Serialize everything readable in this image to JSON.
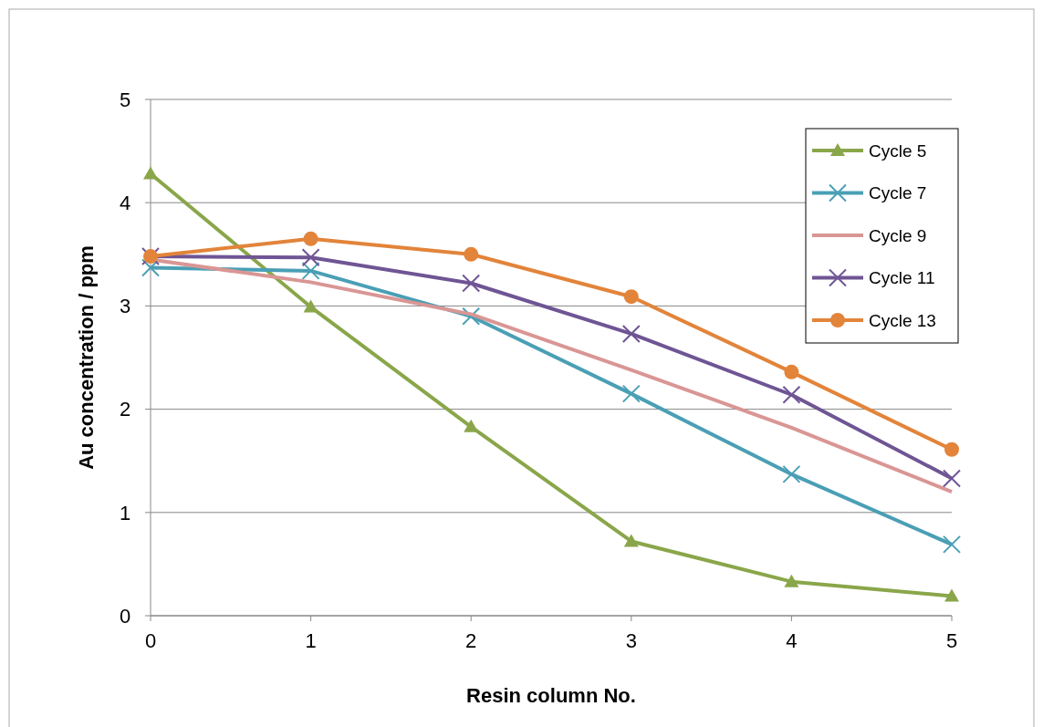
{
  "chart_data": {
    "type": "line",
    "xlabel": "Resin column No.",
    "ylabel": "Au concentration / ppm",
    "x": [
      0,
      1,
      2,
      3,
      4,
      5
    ],
    "xlim": [
      0,
      5
    ],
    "xticks": [
      0,
      1,
      2,
      3,
      4,
      5
    ],
    "ylim": [
      0,
      5
    ],
    "yticks": [
      0,
      1,
      2,
      3,
      4,
      5
    ],
    "grid": "y",
    "legend": "top right",
    "series": [
      {
        "name": "Cycle 5",
        "color": "#8aa64a",
        "marker": "triangle",
        "values": [
          4.28,
          2.99,
          1.83,
          0.72,
          0.33,
          0.19
        ]
      },
      {
        "name": "Cycle 7",
        "color": "#4a9fb5",
        "marker": "cross",
        "values": [
          3.37,
          3.34,
          2.9,
          2.15,
          1.37,
          0.69
        ]
      },
      {
        "name": "Cycle 9",
        "color": "#d99694",
        "marker": "none",
        "values": [
          3.45,
          3.23,
          2.92,
          2.38,
          1.82,
          1.2
        ]
      },
      {
        "name": "Cycle 11",
        "color": "#6f5594",
        "marker": "cross",
        "values": [
          3.48,
          3.47,
          3.22,
          2.73,
          2.14,
          1.33
        ]
      },
      {
        "name": "Cycle 13",
        "color": "#e2843a",
        "marker": "circle",
        "values": [
          3.48,
          3.65,
          3.5,
          3.09,
          2.36,
          1.61
        ]
      }
    ]
  }
}
